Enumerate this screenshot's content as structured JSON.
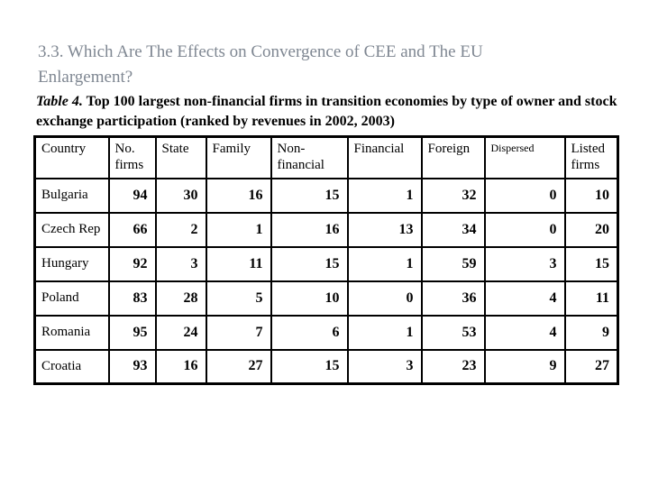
{
  "slide": {
    "title": "3.3. Which Are The Effects on Convergence of CEE and The EU Enlargement?"
  },
  "caption": {
    "label": "Table 4.",
    "text": " Top 100 largest non-financial firms in transition economies by type of owner and stock exchange participation (ranked by revenues in 2002, 2003)"
  },
  "colors": {
    "title_text": "#7f8792",
    "body_text": "#000000",
    "table_border": "#000000",
    "background": "#ffffff"
  },
  "table": {
    "columns": [
      "Country",
      "No. firms",
      "State",
      "Family",
      "Non-financial",
      "Financial",
      "Foreign",
      "Dispersed",
      "Listed firms"
    ],
    "rows": [
      {
        "country": "Bulgaria",
        "values": [
          "94",
          "30",
          "16",
          "15",
          "1",
          "32",
          "0",
          "10"
        ]
      },
      {
        "country": "Czech Rep",
        "values": [
          "66",
          "2",
          "1",
          "16",
          "13",
          "34",
          "0",
          "20"
        ]
      },
      {
        "country": "Hungary",
        "values": [
          "92",
          "3",
          "11",
          "15",
          "1",
          "59",
          "3",
          "15"
        ]
      },
      {
        "country": "Poland",
        "values": [
          "83",
          "28",
          "5",
          "10",
          "0",
          "36",
          "4",
          "11"
        ]
      },
      {
        "country": "Romania",
        "values": [
          "95",
          "24",
          "7",
          "6",
          "1",
          "53",
          "4",
          "9"
        ]
      },
      {
        "country": "Croatia",
        "values": [
          "93",
          "16",
          "27",
          "15",
          "3",
          "23",
          "9",
          "27"
        ]
      }
    ]
  }
}
